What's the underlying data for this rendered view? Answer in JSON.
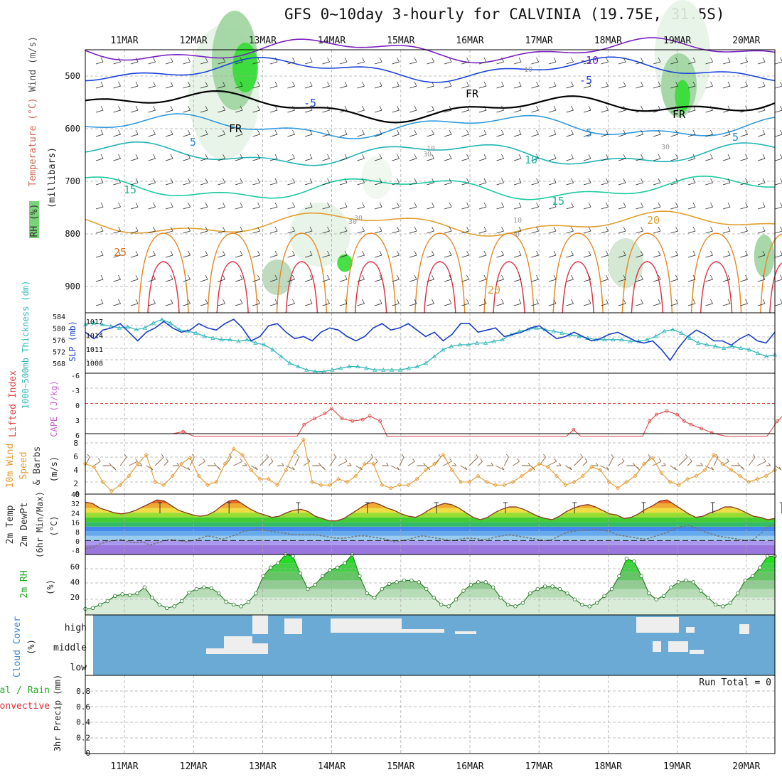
{
  "title": "GFS 0~10day 3-hourly for CALVINIA (19.75E, 31.5S)",
  "dates": [
    "11MAR",
    "12MAR",
    "13MAR",
    "14MAR",
    "15MAR",
    "16MAR",
    "17MAR",
    "18MAR",
    "19MAR",
    "20MAR"
  ],
  "colors": {
    "grid": "#aaaaaa",
    "frame": "#000000",
    "rh_green": "#22cc22",
    "cloud_blue": "#6aaad4",
    "cloud_white": "#eeeeee",
    "slp": "#1a3fc6",
    "thick": "#33b8b8",
    "li": "#dd4444",
    "wind": "#e39a30",
    "barb": "#8a6440",
    "dew": "#777777"
  },
  "upper_air": {
    "ylabel_parts": [
      "Wind (m/s)",
      "Temperature (°C)",
      "RH (%)"
    ],
    "ylabel2": "(millibars)",
    "ylim": [
      450,
      950
    ],
    "pressure_ticks": [
      "500",
      "600",
      "700",
      "800",
      "900"
    ],
    "contour_labels": [
      "-10",
      "-5",
      "-5",
      "5",
      "5",
      "5",
      "10",
      "15",
      "15",
      "20",
      "20",
      "25",
      "FR",
      "FR",
      "FR",
      "10",
      "10",
      "30",
      "30",
      "30",
      "30",
      "10",
      "0"
    ]
  },
  "chart_data": [
    {
      "type": "line",
      "title": "Thickness / SLP",
      "ylabel": "1000~500mb Thickness (dm)",
      "ylabel_right": "SLP (mb)",
      "ylim": [
        568,
        586
      ],
      "ylim_right": [
        1004.5,
        1018.5
      ],
      "yticks": [
        "584",
        "580",
        "576",
        "572",
        "568"
      ],
      "yticks_right": [
        "1017",
        "1014",
        "1011",
        "1008"
      ],
      "series": [
        {
          "name": "SLP (mb)",
          "values": [
            1014,
            1012.5,
            1014.5,
            1015,
            1016,
            1014,
            1012,
            1014,
            1015,
            1016.5,
            1015,
            1014,
            1014.5,
            1016,
            1015,
            1014.5,
            1016,
            1017,
            1015,
            1012,
            1013,
            1015.5,
            1016,
            1014,
            1012.5,
            1013,
            1012,
            1014,
            1015,
            1014.5,
            1013,
            1012,
            1013,
            1015,
            1016,
            1014.5,
            1015,
            1016,
            1014.5,
            1013,
            1014,
            1012,
            1013.5,
            1016,
            1016,
            1014,
            1014.5,
            1015,
            1013,
            1013.5,
            1014,
            1015,
            1015.5,
            1014,
            1012.5,
            1013,
            1014,
            1013,
            1012,
            1012.5,
            1013.5,
            1014,
            1013,
            1012,
            1011.5,
            1012,
            1010,
            1007.5,
            1010.5,
            1013,
            1014.5,
            1013.5,
            1012,
            1012,
            1011,
            1012.5,
            1013.5,
            1012,
            1011.5,
            1014
          ]
        },
        {
          "name": "1000~500mb Thickness (dm)",
          "values": [
            582.5,
            583,
            582.5,
            582,
            581.5,
            581.8,
            581,
            581.5,
            583,
            584,
            583,
            581,
            580.5,
            580,
            579,
            578.5,
            578,
            578,
            577.5,
            578,
            577,
            576.5,
            575,
            573,
            571,
            570,
            569,
            568.5,
            568.5,
            569,
            569.5,
            570,
            570,
            569.5,
            569,
            569,
            569,
            569,
            569.5,
            570,
            571,
            573,
            575,
            576,
            576.5,
            576.5,
            577,
            577,
            577.5,
            578,
            579.5,
            580.5,
            581,
            581.5,
            581,
            580.5,
            580,
            579.5,
            579,
            578.5,
            578,
            578,
            578,
            578,
            577.5,
            577.5,
            578,
            579,
            580.5,
            581,
            580,
            578.5,
            577,
            576.5,
            576,
            575.5,
            576,
            575.5,
            575,
            574,
            573,
            573.5
          ]
        }
      ]
    },
    {
      "type": "line",
      "title": "Lifted Index / CAPE",
      "ylabel": "Lifted Index",
      "ylabel2": "CAPE (J/kg)",
      "ylim": [
        -6,
        6
      ],
      "yticks": [
        "-6",
        "-3",
        "0",
        "3",
        "6"
      ],
      "series": [
        {
          "name": "Lifted Index (segments)",
          "points": [
            [
              0.7,
              6
            ],
            [
              0.85,
              5.6
            ],
            [
              1.0,
              6.5
            ],
            [
              2.5,
              6.5
            ],
            [
              2.6,
              4.2
            ],
            [
              2.75,
              3
            ],
            [
              2.9,
              2
            ],
            [
              3.0,
              1
            ],
            [
              3.15,
              3
            ],
            [
              3.3,
              3.5
            ],
            [
              3.45,
              3.2
            ],
            [
              3.55,
              2.5
            ],
            [
              3.7,
              3.5
            ],
            [
              3.8,
              6.5
            ],
            [
              6.4,
              6.5
            ],
            [
              6.5,
              5.2
            ],
            [
              6.6,
              6.5
            ],
            [
              7.5,
              6.5
            ],
            [
              7.6,
              3.5
            ],
            [
              7.7,
              2.2
            ],
            [
              7.85,
              1.5
            ],
            [
              8.0,
              2.2
            ],
            [
              8.1,
              3.5
            ],
            [
              8.2,
              4.2
            ],
            [
              8.35,
              5
            ],
            [
              8.5,
              5.8
            ],
            [
              8.6,
              6.2
            ],
            [
              8.7,
              6.5
            ],
            [
              9.3,
              6.5
            ],
            [
              9.45,
              3.5
            ],
            [
              9.6,
              1.5
            ]
          ]
        }
      ]
    },
    {
      "type": "line",
      "title": "10m Wind Speed & Barbs",
      "ylabel": "10m Wind Speed & Barbs",
      "yunit": "(m/s)",
      "ylim": [
        0,
        10
      ],
      "yticks": [
        "8",
        "6",
        "4",
        "2"
      ],
      "series": [
        {
          "name": "10m Wind Speed (m/s)",
          "values": [
            5,
            4.5,
            2,
            0.5,
            1.5,
            3,
            5,
            6.5,
            2,
            1.5,
            3,
            5,
            6,
            3,
            1.5,
            2,
            5,
            7.5,
            6.5,
            4,
            2.5,
            2.5,
            1.5,
            4,
            7,
            9,
            2,
            1.5,
            1.5,
            2.5,
            2,
            3,
            5,
            5,
            1.5,
            1,
            1.5,
            1.5,
            2.5,
            4,
            5,
            6.5,
            4,
            2,
            2,
            3,
            2,
            1.5,
            1.5,
            2,
            3,
            4,
            5,
            4.5,
            3,
            1.5,
            2,
            3,
            4.5,
            4,
            2,
            1,
            2,
            3,
            5,
            6,
            3.5,
            2,
            1.5,
            2.5,
            3,
            4,
            6.5,
            5,
            4,
            3,
            2,
            2.5,
            3,
            4
          ]
        }
      ]
    },
    {
      "type": "area",
      "title": "2m Temp / DewPt",
      "ylabel": "2m Temp 2m DewPt (6hr Min/Max) (°C)",
      "ylim": [
        -12,
        40
      ],
      "yticks": [
        "40",
        "32",
        "24",
        "16",
        "8",
        "0",
        "-8"
      ],
      "series": [
        {
          "name": "2m Temp",
          "values": [
            33,
            32,
            28,
            26,
            24,
            23,
            24,
            26,
            29,
            32,
            35,
            34,
            30,
            26,
            24,
            22,
            21,
            22,
            25,
            30,
            34,
            35,
            31,
            27,
            24,
            22,
            20,
            21,
            24,
            26,
            27,
            25,
            21,
            19,
            17,
            17,
            19,
            23,
            27,
            31,
            33,
            31,
            28,
            26,
            23,
            21,
            20,
            23,
            27,
            30,
            32,
            31,
            28,
            24,
            20,
            18,
            20,
            24,
            27,
            29,
            29,
            27,
            24,
            21,
            19,
            18,
            21,
            25,
            28,
            30,
            31,
            29,
            26,
            23,
            22,
            19,
            20,
            23,
            27,
            30,
            34,
            35,
            31,
            27,
            23,
            20,
            21,
            24,
            26,
            29,
            29,
            27,
            24,
            21,
            20,
            18,
            19
          ]
        },
        {
          "name": "2m DewPt",
          "values": [
            -7,
            -6,
            -3,
            -1,
            0,
            1,
            -1,
            -2,
            -1,
            -4,
            -2,
            0,
            1,
            0,
            -1,
            0,
            2,
            4,
            3,
            1,
            3,
            5,
            8,
            9,
            10,
            9,
            8,
            7,
            6,
            5,
            5,
            5,
            5,
            4,
            3,
            2,
            2,
            3,
            4,
            4,
            3,
            2,
            1,
            -1,
            0,
            1,
            3,
            4,
            3,
            2,
            1,
            0,
            1,
            2,
            2,
            1,
            1,
            3,
            4,
            5,
            4,
            3,
            2,
            1,
            0,
            1,
            4,
            7,
            8,
            9,
            9,
            10,
            9,
            8,
            5,
            4,
            3,
            2,
            1,
            3,
            5,
            7,
            10,
            12,
            13,
            11,
            8,
            6,
            4,
            3,
            2,
            1,
            0,
            1,
            6,
            12,
            13
          ]
        }
      ]
    },
    {
      "type": "area",
      "title": "2m RH",
      "ylabel": "2m RH",
      "yunit": "(%)",
      "ylim": [
        0,
        70
      ],
      "yticks": [
        "60",
        "40",
        "20"
      ],
      "series": [
        {
          "name": "2m RH (%)",
          "values": [
            7,
            8,
            12,
            16,
            22,
            24,
            23,
            25,
            32,
            20,
            12,
            8,
            10,
            16,
            26,
            30,
            32,
            31,
            25,
            15,
            12,
            10,
            15,
            25,
            45,
            55,
            60,
            70,
            68,
            48,
            30,
            35,
            45,
            52,
            55,
            60,
            70,
            45,
            25,
            20,
            30,
            36,
            38,
            40,
            40,
            38,
            30,
            20,
            12,
            10,
            18,
            28,
            35,
            38,
            38,
            32,
            20,
            12,
            10,
            14,
            25,
            30,
            33,
            33,
            30,
            25,
            18,
            12,
            10,
            14,
            22,
            30,
            45,
            65,
            62,
            45,
            25,
            18,
            22,
            32,
            38,
            40,
            38,
            28,
            20,
            12,
            10,
            14,
            25,
            40,
            45,
            55,
            68,
            68
          ]
        }
      ]
    },
    {
      "type": "heatmap",
      "title": "Cloud Cover",
      "ylabel": "Cloud Cover",
      "yunit": "(%)",
      "rows": [
        "high",
        "middle",
        "low"
      ]
    },
    {
      "type": "line",
      "title": "3hr Precip",
      "ylabel": "3hr Precip (mm)",
      "ylabel_side": "Total / Rain Convective",
      "ylim": [
        0,
        1
      ],
      "yticks": [
        "0.8",
        "0.6",
        "0.4",
        "0.2",
        "0"
      ],
      "run_total": "Run Total = 0",
      "series": [
        {
          "name": "Total",
          "values": []
        },
        {
          "name": "Convective",
          "values": []
        }
      ]
    }
  ]
}
